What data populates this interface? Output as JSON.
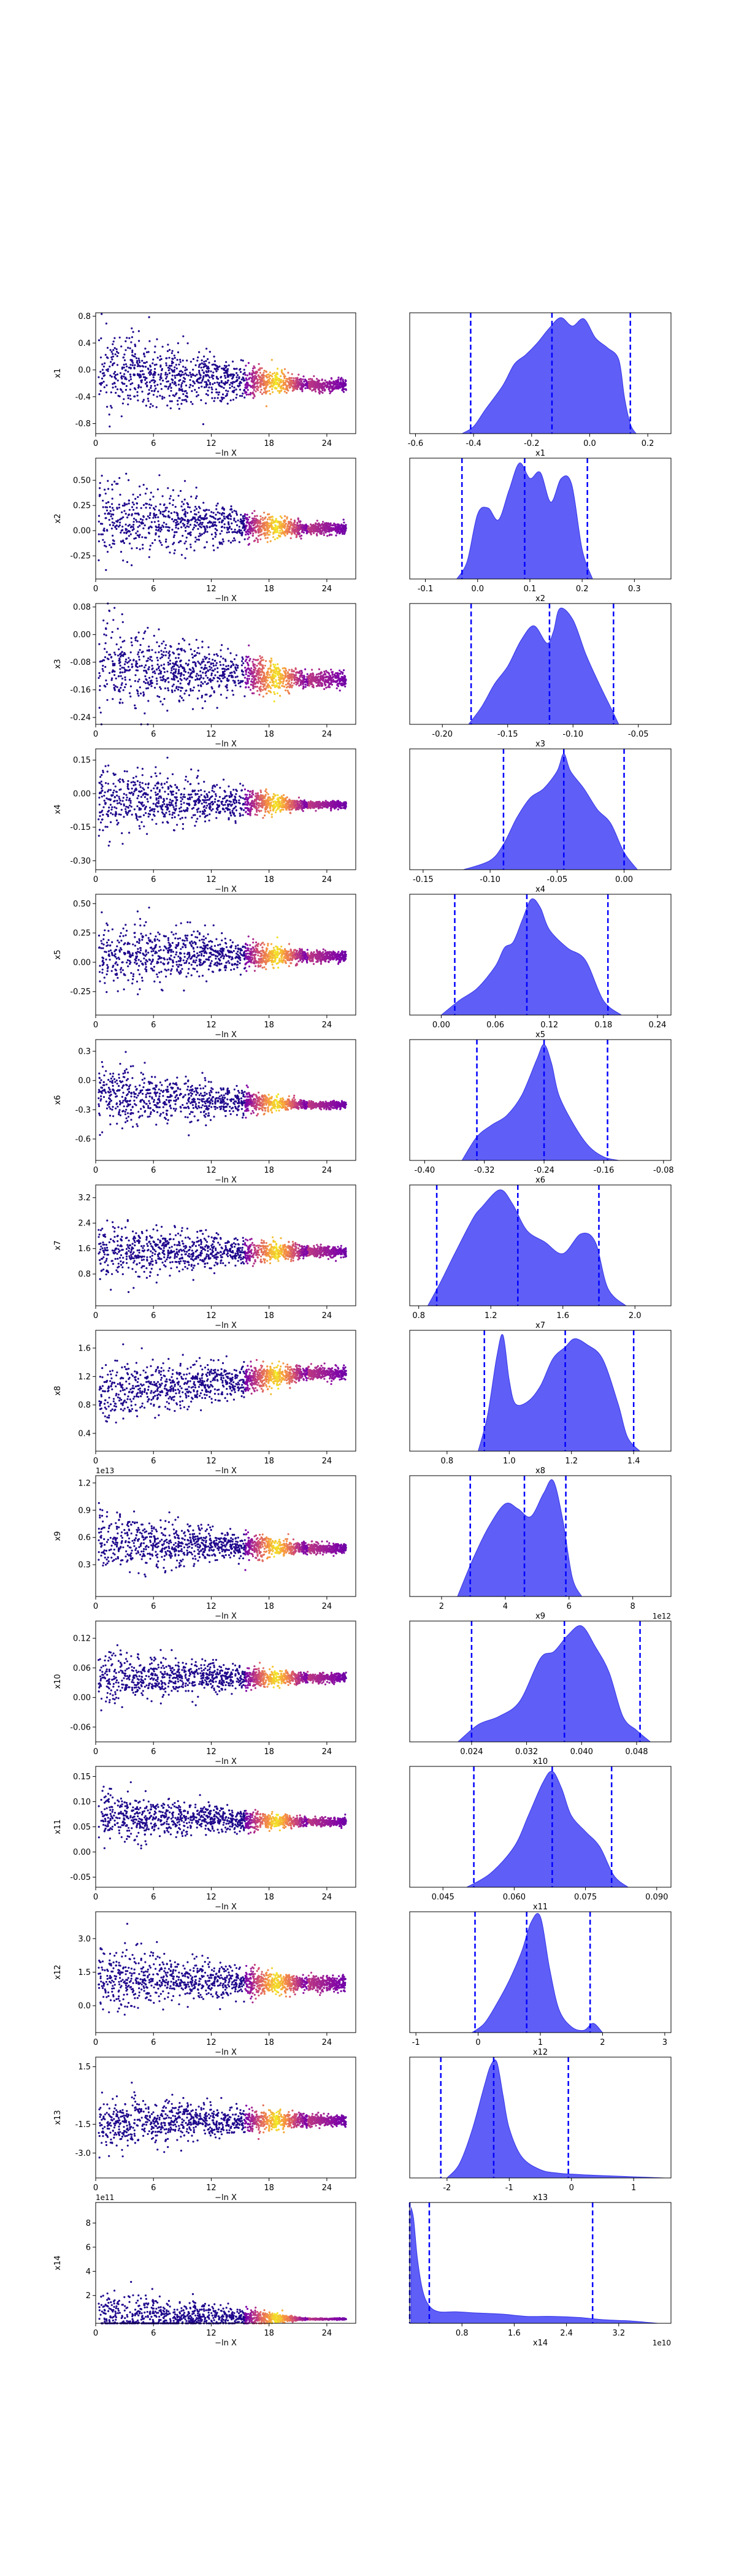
{
  "chart_data": [
    {
      "type": "scatter",
      "xlabel": "−ln X",
      "ylabel": "x1",
      "xlim": [
        0,
        27
      ],
      "ylim": [
        -0.95,
        0.85
      ],
      "x_ticks": [
        "0",
        "6",
        "12",
        "18",
        "24"
      ],
      "y_ticks": [
        "-0.8",
        "-0.4",
        "0.0",
        "0.4",
        "0.8"
      ],
      "offset_label": "",
      "cloud": {
        "start": 0.3,
        "left_spread": 0.55,
        "bright": [
          15.5,
          22.0
        ],
        "center_left": 0.0,
        "center_right": -0.22,
        "right_spread": 0.08
      }
    },
    {
      "type": "area",
      "xlabel": "x1",
      "xlim": [
        -0.62,
        0.28
      ],
      "x_ticks": [
        "-0.6",
        "-0.4",
        "-0.2",
        "0.0",
        "0.2"
      ],
      "kde_x": [
        -0.44,
        -0.4,
        -0.36,
        -0.3,
        -0.26,
        -0.22,
        -0.18,
        -0.14,
        -0.1,
        -0.06,
        -0.02,
        0.02,
        0.06,
        0.1,
        0.12,
        0.14,
        0.16
      ],
      "kde_y": [
        0,
        0.06,
        0.2,
        0.4,
        0.58,
        0.66,
        0.76,
        0.88,
        0.97,
        0.9,
        0.96,
        0.8,
        0.72,
        0.62,
        0.3,
        0.08,
        0
      ],
      "quantiles": [
        -0.41,
        -0.13,
        0.14
      ]
    },
    {
      "type": "scatter",
      "xlabel": "−ln X",
      "ylabel": "x2",
      "xlim": [
        0,
        27
      ],
      "ylim": [
        -0.48,
        0.72
      ],
      "x_ticks": [
        "0",
        "6",
        "12",
        "18",
        "24"
      ],
      "y_ticks": [
        "-0.25",
        "0.00",
        "0.25",
        "0.50"
      ],
      "offset_label": "",
      "cloud": {
        "start": 0.3,
        "left_spread": 0.36,
        "bright": [
          15.5,
          22.0
        ],
        "center_left": 0.12,
        "center_right": 0.02,
        "right_spread": 0.05
      }
    },
    {
      "type": "area",
      "xlabel": "x2",
      "xlim": [
        -0.13,
        0.37
      ],
      "x_ticks": [
        "-0.1",
        "0.0",
        "0.1",
        "0.2",
        "0.3"
      ],
      "kde_x": [
        -0.04,
        -0.02,
        0.0,
        0.02,
        0.04,
        0.06,
        0.08,
        0.1,
        0.12,
        0.14,
        0.16,
        0.18,
        0.2,
        0.22
      ],
      "kde_y": [
        0,
        0.15,
        0.55,
        0.6,
        0.5,
        0.75,
        0.98,
        0.85,
        0.9,
        0.65,
        0.85,
        0.8,
        0.25,
        0
      ],
      "quantiles": [
        -0.03,
        0.09,
        0.21
      ]
    },
    {
      "type": "scatter",
      "xlabel": "−ln X",
      "ylabel": "x3",
      "xlim": [
        0,
        27
      ],
      "ylim": [
        -0.26,
        0.09
      ],
      "x_ticks": [
        "0",
        "6",
        "12",
        "18",
        "24"
      ],
      "y_ticks": [
        "0.08",
        "0.00",
        "-0.08",
        "-0.16",
        "-0.24"
      ],
      "offset_label": "",
      "cloud": {
        "start": 0.3,
        "left_spread": 0.12,
        "bright": [
          15.5,
          22.0
        ],
        "center_left": -0.09,
        "center_right": -0.13,
        "right_spread": 0.02
      }
    },
    {
      "type": "area",
      "xlabel": "x3",
      "xlim": [
        -0.225,
        -0.025
      ],
      "x_ticks": [
        "-0.20",
        "-0.15",
        "-0.10",
        "-0.05"
      ],
      "kde_x": [
        -0.18,
        -0.17,
        -0.16,
        -0.15,
        -0.14,
        -0.13,
        -0.12,
        -0.115,
        -0.11,
        -0.1,
        -0.09,
        -0.08,
        -0.07,
        -0.065
      ],
      "kde_y": [
        0,
        0.15,
        0.35,
        0.5,
        0.72,
        0.85,
        0.7,
        0.8,
        1.0,
        0.9,
        0.6,
        0.35,
        0.12,
        0
      ],
      "quantiles": [
        -0.178,
        -0.118,
        -0.069
      ]
    },
    {
      "type": "scatter",
      "xlabel": "−ln X",
      "ylabel": "x4",
      "xlim": [
        0,
        27
      ],
      "ylim": [
        -0.34,
        0.2
      ],
      "x_ticks": [
        "0",
        "6",
        "12",
        "18",
        "24"
      ],
      "y_ticks": [
        "0.15",
        "0.00",
        "-0.15",
        "-0.30"
      ],
      "offset_label": "",
      "cloud": {
        "start": 0.3,
        "left_spread": 0.14,
        "bright": [
          15.5,
          22.0
        ],
        "center_left": -0.02,
        "center_right": -0.05,
        "right_spread": 0.015
      }
    },
    {
      "type": "area",
      "xlabel": "x4",
      "xlim": [
        -0.16,
        0.035
      ],
      "x_ticks": [
        "-0.15",
        "-0.10",
        "-0.05",
        "0.00"
      ],
      "kde_x": [
        -0.12,
        -0.1,
        -0.09,
        -0.08,
        -0.07,
        -0.06,
        -0.05,
        -0.045,
        -0.04,
        -0.03,
        -0.02,
        -0.01,
        0.0,
        0.01
      ],
      "kde_y": [
        0,
        0.08,
        0.22,
        0.45,
        0.62,
        0.7,
        0.85,
        1.0,
        0.85,
        0.7,
        0.52,
        0.4,
        0.15,
        0
      ],
      "quantiles": [
        -0.09,
        -0.045,
        0.0
      ]
    },
    {
      "type": "scatter",
      "xlabel": "−ln X",
      "ylabel": "x5",
      "xlim": [
        0,
        27
      ],
      "ylim": [
        -0.45,
        0.58
      ],
      "x_ticks": [
        "0",
        "6",
        "12",
        "18",
        "24"
      ],
      "y_ticks": [
        "0.50",
        "0.25",
        "0.00",
        "-0.25"
      ],
      "offset_label": "",
      "cloud": {
        "start": 0.3,
        "left_spread": 0.28,
        "bright": [
          15.5,
          22.0
        ],
        "center_left": 0.08,
        "center_right": 0.05,
        "right_spread": 0.04
      }
    },
    {
      "type": "area",
      "xlabel": "x5",
      "xlim": [
        -0.035,
        0.255
      ],
      "x_ticks": [
        "0.00",
        "0.06",
        "0.12",
        "0.18",
        "0.24"
      ],
      "kde_x": [
        0.0,
        0.02,
        0.04,
        0.06,
        0.07,
        0.08,
        0.09,
        0.1,
        0.11,
        0.12,
        0.14,
        0.16,
        0.18,
        0.2
      ],
      "kde_y": [
        0,
        0.12,
        0.22,
        0.4,
        0.55,
        0.6,
        0.78,
        0.95,
        0.88,
        0.7,
        0.55,
        0.45,
        0.12,
        0
      ],
      "quantiles": [
        0.015,
        0.095,
        0.185
      ]
    },
    {
      "type": "scatter",
      "xlabel": "−ln X",
      "ylabel": "x6",
      "xlim": [
        0,
        27
      ],
      "ylim": [
        -0.82,
        0.42
      ],
      "x_ticks": [
        "0",
        "6",
        "12",
        "18",
        "24"
      ],
      "y_ticks": [
        "0.3",
        "0.0",
        "-0.3",
        "-0.6"
      ],
      "offset_label": "",
      "cloud": {
        "start": 0.3,
        "left_spread": 0.3,
        "bright": [
          15.5,
          22.0
        ],
        "center_left": -0.15,
        "center_right": -0.25,
        "right_spread": 0.03
      }
    },
    {
      "type": "area",
      "xlabel": "x6",
      "xlim": [
        -0.42,
        -0.07
      ],
      "x_ticks": [
        "-0.40",
        "-0.32",
        "-0.24",
        "-0.16",
        "-0.08"
      ],
      "kde_x": [
        -0.35,
        -0.33,
        -0.31,
        -0.29,
        -0.27,
        -0.25,
        -0.24,
        -0.23,
        -0.22,
        -0.2,
        -0.18,
        -0.16,
        -0.14
      ],
      "kde_y": [
        0,
        0.2,
        0.3,
        0.38,
        0.55,
        0.85,
        0.98,
        0.82,
        0.55,
        0.3,
        0.12,
        0.03,
        0
      ],
      "quantiles": [
        -0.33,
        -0.24,
        -0.155
      ]
    },
    {
      "type": "scatter",
      "xlabel": "−ln X",
      "ylabel": "x7",
      "xlim": [
        0,
        27
      ],
      "ylim": [
        -0.2,
        3.6
      ],
      "x_ticks": [
        "0",
        "6",
        "12",
        "18",
        "24"
      ],
      "y_ticks": [
        "3.2",
        "2.4",
        "1.6",
        "0.8"
      ],
      "offset_label": "",
      "cloud": {
        "start": 0.3,
        "left_spread": 0.9,
        "bright": [
          15.5,
          22.0
        ],
        "center_left": 1.5,
        "center_right": 1.5,
        "right_spread": 0.15
      }
    },
    {
      "type": "area",
      "xlabel": "x7",
      "xlim": [
        0.75,
        2.2
      ],
      "x_ticks": [
        "0.8",
        "1.2",
        "1.6",
        "2.0"
      ],
      "kde_x": [
        0.85,
        0.92,
        1.0,
        1.1,
        1.15,
        1.25,
        1.32,
        1.4,
        1.5,
        1.6,
        1.7,
        1.78,
        1.85,
        1.95
      ],
      "kde_y": [
        0,
        0.2,
        0.45,
        0.75,
        0.85,
        1.0,
        0.88,
        0.65,
        0.55,
        0.45,
        0.62,
        0.55,
        0.15,
        0
      ],
      "quantiles": [
        0.9,
        1.35,
        1.8
      ]
    },
    {
      "type": "scatter",
      "xlabel": "−ln X",
      "ylabel": "x8",
      "xlim": [
        0,
        27
      ],
      "ylim": [
        0.15,
        1.85
      ],
      "x_ticks": [
        "0",
        "6",
        "12",
        "18",
        "24"
      ],
      "y_ticks": [
        "1.6",
        "1.2",
        "0.8",
        "0.4"
      ],
      "offset_label": "",
      "cloud": {
        "start": 0.3,
        "left_spread": 0.42,
        "bright": [
          15.5,
          22.0
        ],
        "center_left": 0.95,
        "center_right": 1.25,
        "right_spread": 0.08
      }
    },
    {
      "type": "area",
      "xlabel": "x8",
      "xlim": [
        0.68,
        1.52
      ],
      "x_ticks": [
        "0.8",
        "1.0",
        "1.2",
        "1.4"
      ],
      "kde_x": [
        0.9,
        0.93,
        0.96,
        0.98,
        1.0,
        1.02,
        1.06,
        1.1,
        1.14,
        1.18,
        1.21,
        1.25,
        1.3,
        1.35,
        1.38,
        1.42
      ],
      "kde_y": [
        0,
        0.3,
        0.8,
        0.98,
        0.6,
        0.4,
        0.42,
        0.55,
        0.78,
        0.88,
        0.95,
        0.9,
        0.78,
        0.4,
        0.12,
        0
      ],
      "quantiles": [
        0.92,
        1.18,
        1.4
      ]
    },
    {
      "type": "scatter",
      "xlabel": "−ln X",
      "ylabel": "x9",
      "xlim": [
        0,
        27
      ],
      "ylim": [
        -0.05,
        1.28
      ],
      "x_ticks": [
        "0",
        "6",
        "12",
        "18",
        "24"
      ],
      "y_ticks": [
        "1.2",
        "0.9",
        "0.6",
        "0.3"
      ],
      "offset_label": "1e13",
      "cloud": {
        "start": 0.3,
        "left_spread": 0.32,
        "bright": [
          15.5,
          22.0
        ],
        "center_left": 0.55,
        "center_right": 0.48,
        "right_spread": 0.05
      }
    },
    {
      "type": "area",
      "xlabel": "x9",
      "xlim": [
        1.0,
        9.2
      ],
      "x_ticks": [
        "2",
        "4",
        "6",
        "8"
      ],
      "offset_label": "1e12",
      "kde_x": [
        2.5,
        3.0,
        3.5,
        4.0,
        4.4,
        4.8,
        5.2,
        5.5,
        5.8,
        6.1,
        6.4
      ],
      "kde_y": [
        0,
        0.3,
        0.55,
        0.72,
        0.68,
        0.62,
        0.8,
        0.9,
        0.6,
        0.15,
        0
      ],
      "quantiles": [
        2.9,
        4.6,
        5.9
      ]
    },
    {
      "type": "scatter",
      "xlabel": "−ln X",
      "ylabel": "x10",
      "xlim": [
        0,
        27
      ],
      "ylim": [
        -0.09,
        0.155
      ],
      "x_ticks": [
        "0",
        "6",
        "12",
        "18",
        "24"
      ],
      "y_ticks": [
        "0.12",
        "0.06",
        "0.00",
        "-0.06"
      ],
      "offset_label": "",
      "cloud": {
        "start": 0.3,
        "left_spread": 0.05,
        "bright": [
          15.5,
          22.0
        ],
        "center_left": 0.04,
        "center_right": 0.04,
        "right_spread": 0.008
      }
    },
    {
      "type": "area",
      "xlabel": "x10",
      "xlim": [
        0.015,
        0.053
      ],
      "x_ticks": [
        "0.024",
        "0.032",
        "0.040",
        "0.048"
      ],
      "kde_x": [
        0.022,
        0.025,
        0.028,
        0.031,
        0.034,
        0.036,
        0.038,
        0.04,
        0.042,
        0.044,
        0.046,
        0.048,
        0.05
      ],
      "kde_y": [
        0,
        0.15,
        0.22,
        0.35,
        0.72,
        0.78,
        0.92,
        1.0,
        0.82,
        0.6,
        0.22,
        0.1,
        0
      ],
      "quantiles": [
        0.024,
        0.0375,
        0.0485
      ]
    },
    {
      "type": "scatter",
      "xlabel": "−ln X",
      "ylabel": "x11",
      "xlim": [
        0,
        27
      ],
      "ylim": [
        -0.07,
        0.17
      ],
      "x_ticks": [
        "0",
        "6",
        "12",
        "18",
        "24"
      ],
      "y_ticks": [
        "0.15",
        "0.10",
        "0.05",
        "0.00",
        "-0.05"
      ],
      "offset_label": "",
      "cloud": {
        "start": 0.3,
        "left_spread": 0.045,
        "bright": [
          15.5,
          22.0
        ],
        "center_left": 0.07,
        "center_right": 0.06,
        "right_spread": 0.007
      }
    },
    {
      "type": "area",
      "xlabel": "x11",
      "xlim": [
        0.038,
        0.093
      ],
      "x_ticks": [
        "0.045",
        "0.060",
        "0.075",
        "0.090"
      ],
      "kde_x": [
        0.05,
        0.055,
        0.06,
        0.063,
        0.066,
        0.068,
        0.07,
        0.072,
        0.075,
        0.078,
        0.081,
        0.084
      ],
      "kde_y": [
        0,
        0.12,
        0.35,
        0.62,
        0.9,
        1.0,
        0.85,
        0.62,
        0.48,
        0.35,
        0.1,
        0
      ],
      "quantiles": [
        0.0515,
        0.068,
        0.0805
      ]
    },
    {
      "type": "scatter",
      "xlabel": "−ln X",
      "ylabel": "x12",
      "xlim": [
        0,
        27
      ],
      "ylim": [
        -1.2,
        4.2
      ],
      "x_ticks": [
        "0",
        "6",
        "12",
        "18",
        "24"
      ],
      "y_ticks": [
        "3.0",
        "1.5",
        "0.0"
      ],
      "offset_label": "",
      "cloud": {
        "start": 0.3,
        "left_spread": 1.3,
        "bright": [
          15.5,
          22.0
        ],
        "center_left": 1.2,
        "center_right": 1.0,
        "right_spread": 0.3
      }
    },
    {
      "type": "area",
      "xlabel": "x12",
      "xlim": [
        -1.1,
        3.1
      ],
      "x_ticks": [
        "-1",
        "0",
        "1",
        "2",
        "3"
      ],
      "kde_x": [
        -0.1,
        0.1,
        0.3,
        0.5,
        0.7,
        0.85,
        1.0,
        1.15,
        1.3,
        1.5,
        1.7,
        1.85,
        2.0
      ],
      "kde_y": [
        0,
        0.08,
        0.25,
        0.45,
        0.7,
        0.95,
        1.0,
        0.55,
        0.2,
        0.05,
        0.02,
        0.08,
        0
      ],
      "quantiles": [
        -0.05,
        0.78,
        1.8
      ]
    },
    {
      "type": "scatter",
      "xlabel": "−ln X",
      "ylabel": "x13",
      "xlim": [
        0,
        27
      ],
      "ylim": [
        -4.3,
        2.0
      ],
      "x_ticks": [
        "0",
        "6",
        "12",
        "18",
        "24"
      ],
      "y_ticks": [
        "1.5",
        "-1.5",
        "-3.0"
      ],
      "offset_label": "",
      "cloud": {
        "start": 0.3,
        "left_spread": 1.3,
        "bright": [
          15.5,
          22.0
        ],
        "center_left": -1.4,
        "center_right": -1.3,
        "right_spread": 0.25
      }
    },
    {
      "type": "area",
      "xlabel": "x13",
      "xlim": [
        -2.6,
        1.6
      ],
      "x_ticks": [
        "-2",
        "-1",
        "0",
        "1"
      ],
      "kde_x": [
        -2.0,
        -1.8,
        -1.6,
        -1.4,
        -1.3,
        -1.2,
        -1.1,
        -1.0,
        -0.8,
        -0.5,
        -0.2,
        0.1,
        0.5,
        1.0,
        1.5
      ],
      "kde_y": [
        0,
        0.12,
        0.4,
        0.78,
        0.95,
        0.98,
        0.7,
        0.42,
        0.18,
        0.07,
        0.04,
        0.03,
        0.02,
        0.01,
        0
      ],
      "quantiles": [
        -2.1,
        -1.25,
        -0.05
      ]
    },
    {
      "type": "scatter",
      "xlabel": "−ln X",
      "ylabel": "x14",
      "xlim": [
        0,
        27
      ],
      "ylim": [
        -0.3,
        9.7
      ],
      "x_ticks": [
        "0",
        "6",
        "12",
        "18",
        "24"
      ],
      "y_ticks": [
        "8",
        "6",
        "4",
        "2"
      ],
      "offset_label": "1e11",
      "cloud": {
        "start": 0.3,
        "left_spread": 2.0,
        "bright": [
          15.5,
          22.0
        ],
        "center_left": 0.35,
        "center_right": 0.05,
        "right_spread": 0.05
      }
    },
    {
      "type": "area",
      "xlabel": "x14",
      "xlim": [
        0.0,
        4.0
      ],
      "x_ticks": [
        "0.8",
        "1.6",
        "2.4",
        "3.2"
      ],
      "offset_label": "1e10",
      "kde_x": [
        0.02,
        0.06,
        0.12,
        0.2,
        0.3,
        0.45,
        0.7,
        1.0,
        1.4,
        1.8,
        2.2,
        2.6,
        3.0,
        3.4,
        3.8
      ],
      "kde_y": [
        1.0,
        0.9,
        0.55,
        0.28,
        0.15,
        0.1,
        0.1,
        0.09,
        0.08,
        0.06,
        0.06,
        0.05,
        0.03,
        0.02,
        0.0
      ],
      "quantiles": [
        0.3,
        0.0,
        2.8
      ]
    }
  ]
}
